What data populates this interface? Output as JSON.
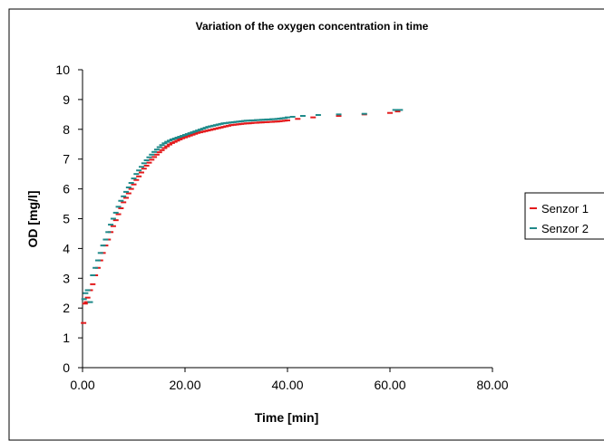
{
  "chart_data": {
    "type": "scatter",
    "title": "Variation of the oxygen concentration in time",
    "xlabel": "Time [min]",
    "ylabel": "OD [mg/l]",
    "xlim": [
      0,
      80
    ],
    "ylim": [
      0,
      10
    ],
    "xticks": [
      "0.00",
      "20.00",
      "40.00",
      "60.00",
      "80.00"
    ],
    "yticks": [
      "0",
      "1",
      "2",
      "3",
      "4",
      "5",
      "6",
      "7",
      "8",
      "9",
      "10"
    ],
    "grid": false,
    "legend_position": "right",
    "marker": "short horizontal dash",
    "series": [
      {
        "name": "Senzor 1",
        "color": "#e31a1c",
        "x": [
          0.2,
          0.5,
          0.8,
          1,
          1.5,
          2,
          2.5,
          3,
          3.5,
          4,
          4.5,
          5,
          5.5,
          6,
          6.5,
          7,
          7.5,
          8,
          8.5,
          9,
          9.5,
          10,
          10.5,
          11,
          11.5,
          12,
          12.5,
          13,
          13.5,
          14,
          14.5,
          15,
          15.5,
          16,
          16.5,
          17,
          17.5,
          18,
          18.5,
          19,
          19.5,
          20,
          20.5,
          21,
          21.5,
          22,
          22.5,
          23,
          23.5,
          24,
          24.5,
          25,
          25.5,
          26,
          26.5,
          27,
          27.5,
          28,
          28.5,
          29,
          29.5,
          30,
          30.5,
          31,
          31.5,
          32,
          32.5,
          33,
          33.5,
          34,
          34.5,
          35,
          35.5,
          36,
          36.5,
          37,
          37.5,
          38,
          38.5,
          39,
          39.5,
          40,
          42,
          45,
          50,
          55,
          60,
          61.5
        ],
        "y": [
          1.5,
          2.15,
          2.2,
          2.35,
          2.6,
          2.8,
          3.1,
          3.35,
          3.6,
          3.85,
          4.1,
          4.3,
          4.55,
          4.75,
          4.95,
          5.15,
          5.35,
          5.55,
          5.7,
          5.85,
          6.0,
          6.15,
          6.3,
          6.42,
          6.55,
          6.68,
          6.78,
          6.88,
          6.98,
          7.07,
          7.15,
          7.23,
          7.3,
          7.37,
          7.43,
          7.49,
          7.54,
          7.58,
          7.62,
          7.66,
          7.7,
          7.73,
          7.76,
          7.79,
          7.82,
          7.85,
          7.88,
          7.9,
          7.92,
          7.94,
          7.96,
          7.98,
          8.0,
          8.02,
          8.04,
          8.06,
          8.08,
          8.1,
          8.12,
          8.14,
          8.15,
          8.16,
          8.17,
          8.18,
          8.19,
          8.2,
          8.2,
          8.21,
          8.22,
          8.22,
          8.23,
          8.23,
          8.24,
          8.24,
          8.25,
          8.25,
          8.26,
          8.26,
          8.27,
          8.28,
          8.29,
          8.3,
          8.35,
          8.4,
          8.45,
          8.5,
          8.55,
          8.6
        ]
      },
      {
        "name": "Senzor 2",
        "color": "#1f8a8a",
        "x": [
          0.3,
          0.6,
          1,
          1.5,
          2,
          2.5,
          3,
          3.5,
          4,
          4.5,
          5,
          5.5,
          6,
          6.5,
          7,
          7.5,
          8,
          8.5,
          9,
          9.5,
          10,
          10.5,
          11,
          11.5,
          12,
          12.5,
          13,
          13.5,
          14,
          14.5,
          15,
          15.5,
          16,
          16.5,
          17,
          17.5,
          18,
          18.5,
          19,
          19.5,
          20,
          20.5,
          21,
          21.5,
          22,
          22.5,
          23,
          23.5,
          24,
          24.5,
          25,
          25.5,
          26,
          26.5,
          27,
          27.5,
          28,
          28.5,
          29,
          29.5,
          30,
          30.5,
          31,
          31.5,
          32,
          32.5,
          33,
          33.5,
          34,
          34.5,
          35,
          35.5,
          36,
          36.5,
          37,
          37.5,
          38,
          38.5,
          39,
          39.5,
          40,
          41,
          43,
          46,
          50,
          55,
          61,
          62
        ],
        "y": [
          2.3,
          2.5,
          2.6,
          2.2,
          3.1,
          3.35,
          3.6,
          3.85,
          4.1,
          4.3,
          4.55,
          4.8,
          5.0,
          5.2,
          5.4,
          5.6,
          5.75,
          5.9,
          6.05,
          6.2,
          6.35,
          6.5,
          6.62,
          6.74,
          6.86,
          6.96,
          7.06,
          7.15,
          7.24,
          7.32,
          7.4,
          7.47,
          7.53,
          7.58,
          7.62,
          7.66,
          7.69,
          7.72,
          7.75,
          7.78,
          7.81,
          7.84,
          7.87,
          7.9,
          7.93,
          7.96,
          7.99,
          8.02,
          8.05,
          8.08,
          8.1,
          8.12,
          8.14,
          8.16,
          8.18,
          8.2,
          8.21,
          8.22,
          8.23,
          8.24,
          8.25,
          8.26,
          8.27,
          8.28,
          8.29,
          8.29,
          8.3,
          8.3,
          8.31,
          8.31,
          8.32,
          8.32,
          8.33,
          8.33,
          8.34,
          8.34,
          8.35,
          8.36,
          8.37,
          8.38,
          8.4,
          8.42,
          8.45,
          8.48,
          8.5,
          8.52,
          8.65,
          8.65
        ]
      }
    ]
  }
}
